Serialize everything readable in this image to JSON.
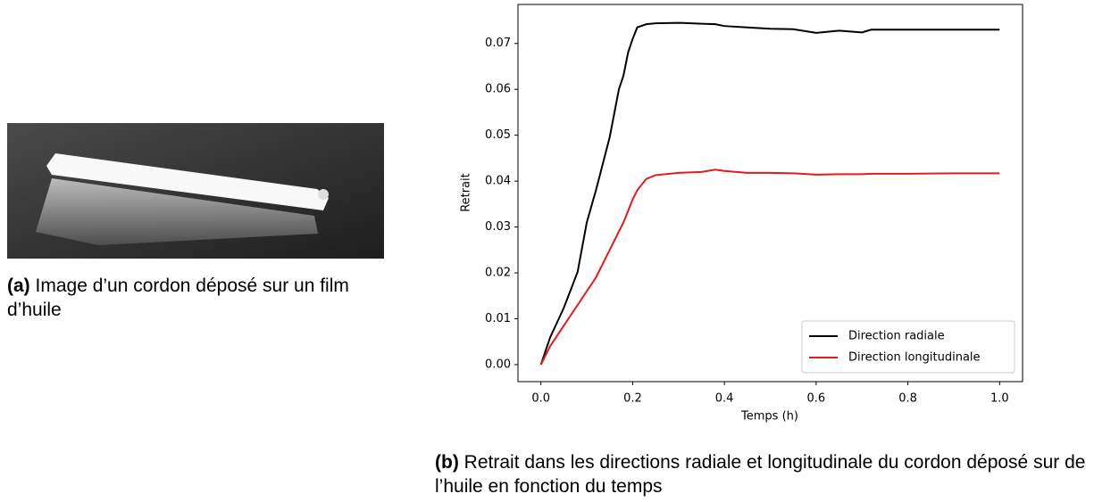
{
  "figure_a": {
    "label": "(a)",
    "caption": "Image d’un cordon déposé sur un film d’huile"
  },
  "figure_b": {
    "label": "(b)",
    "caption": "Retrait dans les directions radiale et longitudinale du cordon déposé sur de l’huile en fonction du temps"
  },
  "chart_data": {
    "type": "line",
    "xlabel": "Temps (h)",
    "ylabel": "Retrait",
    "x": [
      0,
      0.02,
      0.05,
      0.08,
      0.1,
      0.12,
      0.15,
      0.17,
      0.18,
      0.19,
      0.2,
      0.21,
      0.23,
      0.25,
      0.3,
      0.35,
      0.38,
      0.4,
      0.45,
      0.5,
      0.55,
      0.6,
      0.65,
      0.7,
      0.72,
      0.8,
      0.9,
      1.0
    ],
    "series": [
      {
        "name": "Direction radiale",
        "color": "#000000",
        "values": [
          0,
          0.0059,
          0.0124,
          0.0202,
          0.031,
          0.038,
          0.0496,
          0.06,
          0.063,
          0.068,
          0.071,
          0.0735,
          0.0742,
          0.0744,
          0.0745,
          0.0743,
          0.0742,
          0.0738,
          0.0735,
          0.0732,
          0.0731,
          0.0723,
          0.0728,
          0.0724,
          0.073,
          0.073,
          0.073,
          0.073
        ]
      },
      {
        "name": "Direction longitudinale",
        "color": "#e41a1c",
        "values": [
          0,
          0.004,
          0.0085,
          0.013,
          0.016,
          0.019,
          0.025,
          0.029,
          0.031,
          0.0335,
          0.036,
          0.038,
          0.0405,
          0.0413,
          0.0418,
          0.042,
          0.0425,
          0.0422,
          0.0418,
          0.0418,
          0.0417,
          0.0414,
          0.0415,
          0.0415,
          0.0416,
          0.0416,
          0.0417,
          0.0417
        ]
      }
    ],
    "xlim": [
      -0.05,
      1.05
    ],
    "xticks": [
      {
        "value": 0,
        "label": "0.0"
      },
      0.2,
      0.4,
      0.6,
      0.8,
      {
        "value": 1,
        "label": "1.0"
      }
    ],
    "ylim": [
      -0.0037,
      0.0785
    ],
    "yticks": [
      {
        "value": 0,
        "label": "0.00"
      },
      0.01,
      0.02,
      0.03,
      0.04,
      0.05,
      0.06,
      0.07
    ],
    "legend": "lower right",
    "grid": false
  }
}
